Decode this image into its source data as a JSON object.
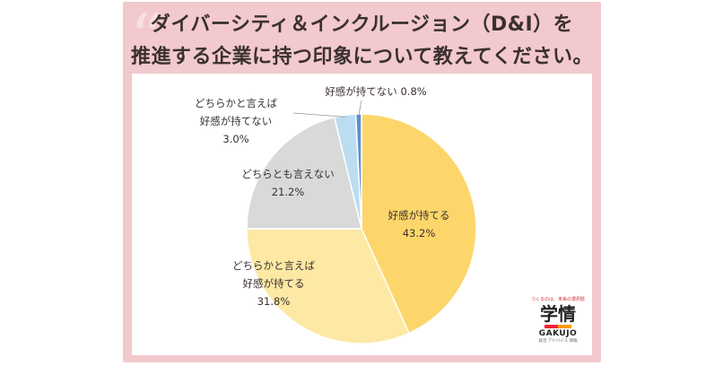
{
  "title": {
    "line1": "ダイバーシティ＆インクルージョン（D&I）を",
    "line2": "推進する企業に持つ印象について教えてください。"
  },
  "chart_data": {
    "type": "pie",
    "slices": [
      {
        "label": "好感が持てる",
        "value": 43.2,
        "value_label": "43.2%",
        "color": "#fdd66b"
      },
      {
        "label": "どちらかと言えば好感が持てる",
        "value": 31.8,
        "value_label": "31.8%",
        "color": "#fde9a4"
      },
      {
        "label": "どちらとも言えない",
        "value": 21.2,
        "value_label": "21.2%",
        "color": "#d9d9d9"
      },
      {
        "label": "どちらかと言えば好感が持てない",
        "value": 3.0,
        "value_label": "3.0%",
        "color": "#bcdcf0"
      },
      {
        "label": "好感が持てない",
        "value": 0.8,
        "value_label": "0.8%",
        "color": "#5b8fcc"
      }
    ]
  },
  "labels": {
    "s0": [
      "好感が持てる",
      "43.2%"
    ],
    "s1": [
      "どちらかと言えば",
      "好感が持てる",
      "31.8%"
    ],
    "s2": [
      "どちらとも言えない",
      "21.2%"
    ],
    "s3": [
      "どちらかと言えば",
      "好感が持てない",
      "3.0%"
    ],
    "s4": [
      "好感が持てない 0.8%"
    ]
  },
  "logo": {
    "tagline": "つくるのは、未来の選択肢",
    "kanji": "学情",
    "roman": "GAKUJO",
    "sub": "就活 アドバイス 情報"
  }
}
